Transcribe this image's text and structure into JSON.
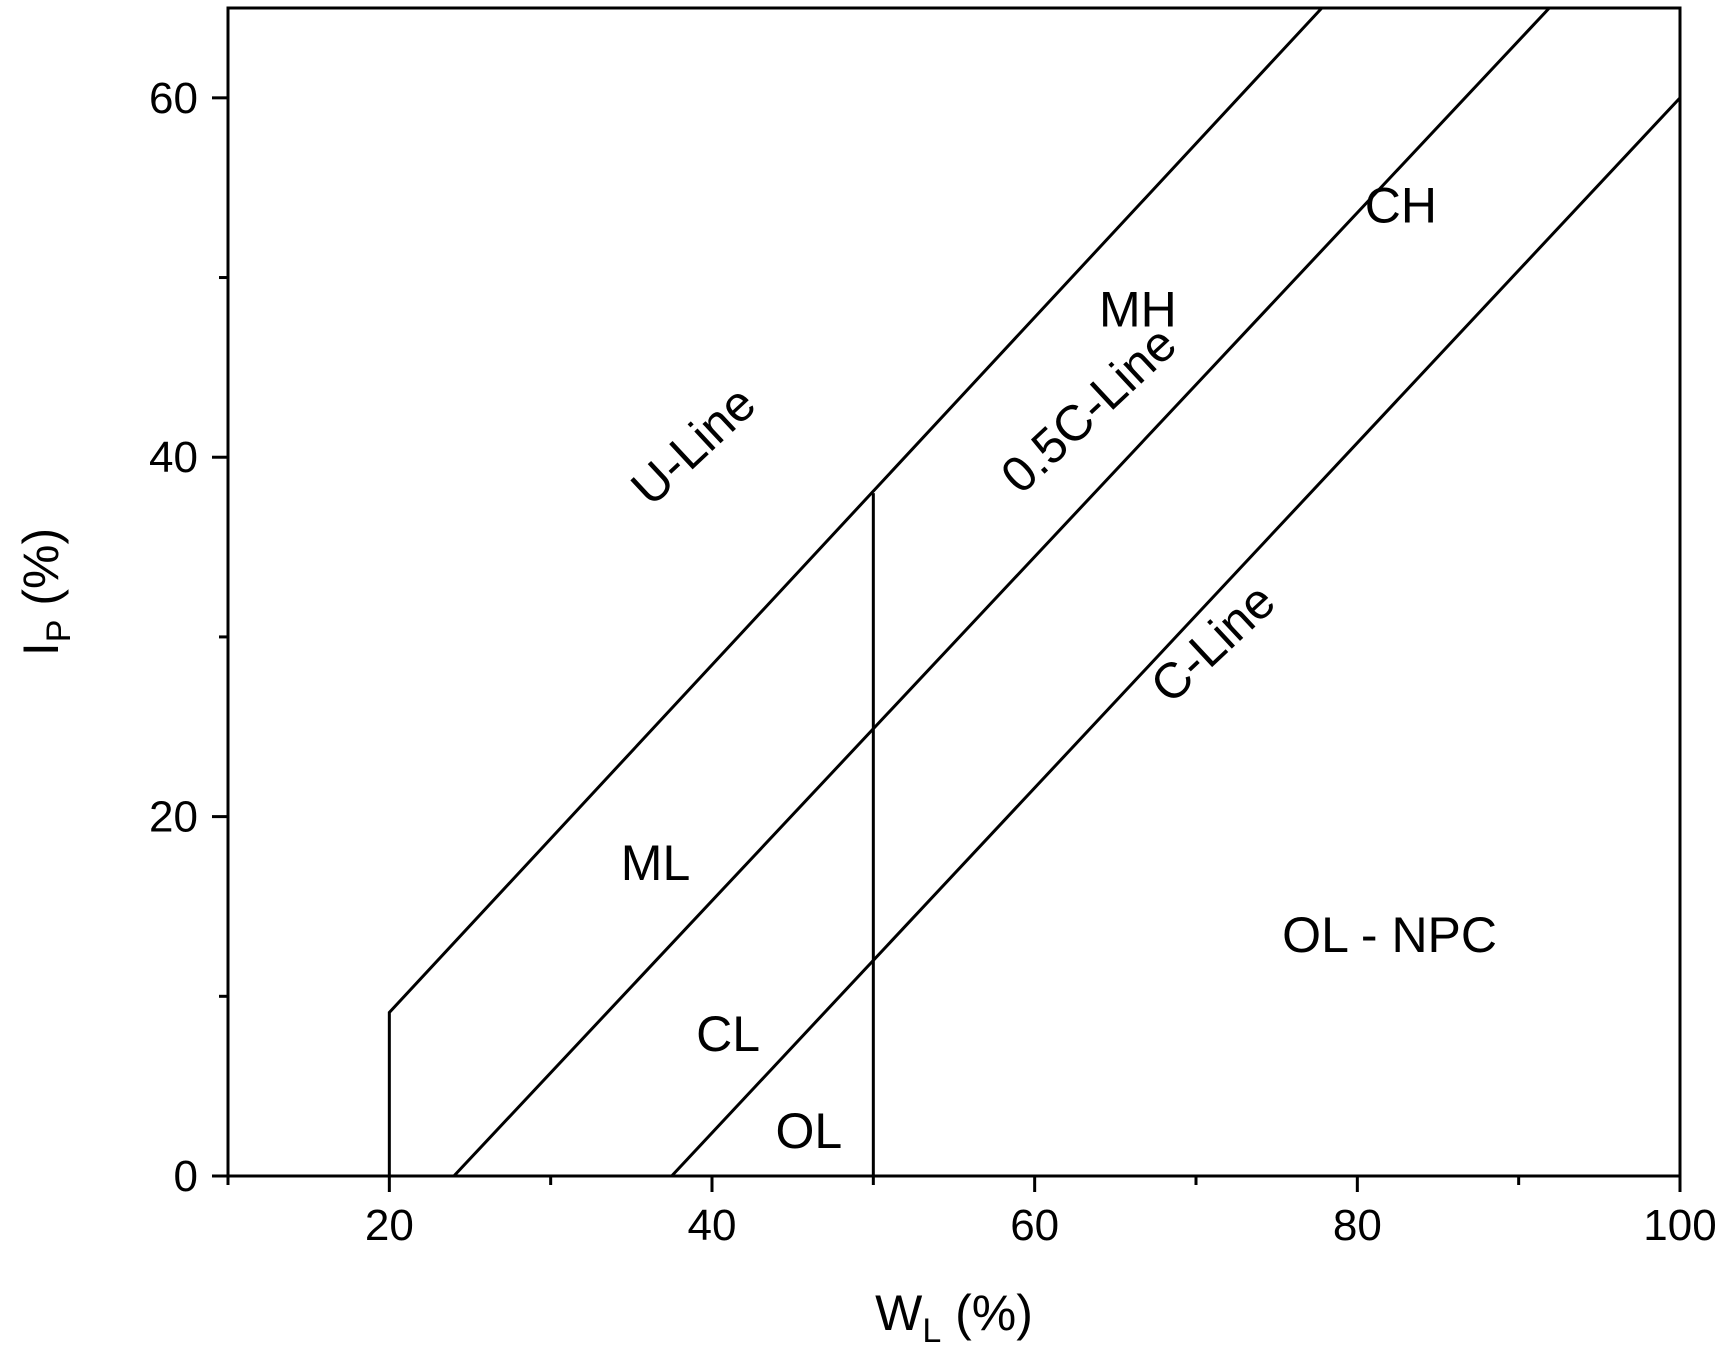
{
  "chart_data": {
    "type": "line",
    "title": "",
    "xlim": [
      10,
      100
    ],
    "ylim": [
      0,
      65
    ],
    "x_ticks": [
      20,
      40,
      60,
      80,
      100
    ],
    "x_minor_ticks": [
      10,
      30,
      50,
      70,
      90
    ],
    "y_ticks": [
      0,
      20,
      40,
      60
    ],
    "y_minor_ticks": [
      10,
      30,
      50
    ],
    "x_tick_labels": [
      "20",
      "40",
      "60",
      "80",
      "100"
    ],
    "y_tick_labels": [
      "0",
      "20",
      "40",
      "60"
    ],
    "xlabel": {
      "main": "W",
      "sub": "L",
      "unit": " (%)"
    },
    "ylabel": {
      "main": "I",
      "sub": "P",
      "unit": " (%)"
    },
    "series": [
      {
        "name": "U-Line",
        "x": [
          20,
          20,
          77.8
        ],
        "y": [
          0,
          9.1,
          65
        ]
      },
      {
        "name": "0.5C-Line",
        "x": [
          24,
          91.9
        ],
        "y": [
          0,
          65
        ]
      },
      {
        "name": "C-Line",
        "x": [
          37.5,
          100
        ],
        "y": [
          0,
          60
        ]
      },
      {
        "name": "",
        "x": [
          50,
          50
        ],
        "y": [
          0,
          38
        ]
      }
    ],
    "annotations": [
      {
        "text": "U-Line",
        "x": 39,
        "y": 40.5,
        "rotate": -43
      },
      {
        "text": "0.5C-Line",
        "x": 63.5,
        "y": 42.5,
        "rotate": -43
      },
      {
        "text": "C-Line",
        "x": 71.2,
        "y": 29.5,
        "rotate": -43
      },
      {
        "text": "MH",
        "x": 66.4,
        "y": 48
      },
      {
        "text": "CH",
        "x": 82.7,
        "y": 53.8
      },
      {
        "text": "ML",
        "x": 36.5,
        "y": 17.2
      },
      {
        "text": "CL",
        "x": 41,
        "y": 7.7
      },
      {
        "text": "OL",
        "x": 46,
        "y": 2.3
      },
      {
        "text": "OL - NPC",
        "x": 82,
        "y": 13.2
      }
    ],
    "grid": false,
    "legend": "none"
  }
}
